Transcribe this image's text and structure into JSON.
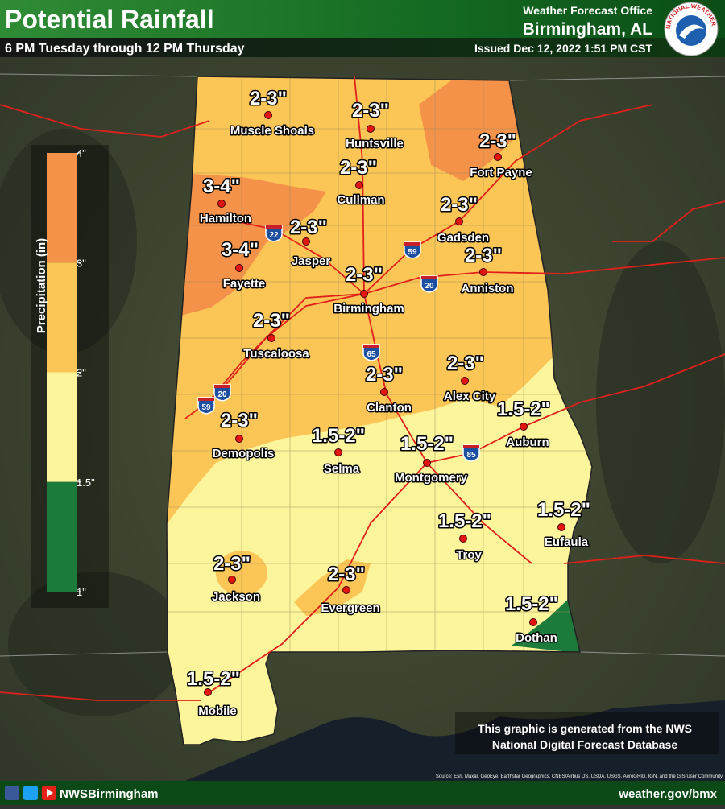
{
  "header": {
    "title": "Potential Rainfall",
    "subtitle": "6 PM Tuesday through 12 PM Thursday",
    "office": "Weather Forecast Office",
    "location": "Birmingham, AL",
    "issued": "Issued Dec 12, 2022 1:51 PM CST"
  },
  "logo_text": "NATIONAL WEATHER SERVICE",
  "legend": {
    "title": "Precipitation (in)",
    "ticks": [
      {
        "value": 4,
        "label": "4\""
      },
      {
        "value": 3,
        "label": "3\""
      },
      {
        "value": 2,
        "label": "2\""
      },
      {
        "value": 1.5,
        "label": "1.5\""
      },
      {
        "value": 1,
        "label": "1\""
      }
    ],
    "colors": [
      "#f4924a",
      "#fcc656",
      "#fdf59c",
      "#1c7a3a"
    ]
  },
  "cities": [
    {
      "name": "Muscle Shoals",
      "amount": "2-3\""
    },
    {
      "name": "Huntsville",
      "amount": "2-3\""
    },
    {
      "name": "Fort Payne",
      "amount": "2-3\""
    },
    {
      "name": "Cullman",
      "amount": "2-3\""
    },
    {
      "name": "Hamilton",
      "amount": "3-4\""
    },
    {
      "name": "Gadsden",
      "amount": "2-3\""
    },
    {
      "name": "Jasper",
      "amount": "2-3\""
    },
    {
      "name": "Fayette",
      "amount": "3-4\""
    },
    {
      "name": "Anniston",
      "amount": "2-3\""
    },
    {
      "name": "Birmingham",
      "amount": "2-3\""
    },
    {
      "name": "Tuscaloosa",
      "amount": "2-3\""
    },
    {
      "name": "Alex City",
      "amount": "2-3\""
    },
    {
      "name": "Clanton",
      "amount": "2-3\""
    },
    {
      "name": "Auburn",
      "amount": "1.5-2\""
    },
    {
      "name": "Demopolis",
      "amount": "2-3\""
    },
    {
      "name": "Selma",
      "amount": "1.5-2\""
    },
    {
      "name": "Montgomery",
      "amount": "1.5-2\""
    },
    {
      "name": "Troy",
      "amount": "1.5-2\""
    },
    {
      "name": "Eufaula",
      "amount": "1.5-2\""
    },
    {
      "name": "Jackson",
      "amount": "2-3\""
    },
    {
      "name": "Evergreen",
      "amount": "2-3\""
    },
    {
      "name": "Dothan",
      "amount": "1.5-2\""
    },
    {
      "name": "Mobile",
      "amount": "1.5-2\""
    }
  ],
  "interstates": [
    "22",
    "59",
    "20",
    "65",
    "20",
    "59",
    "85"
  ],
  "note": [
    "This graphic is generated from the NWS",
    "National Digital Forecast Database"
  ],
  "source": "Source: Esri, Maxar, GeoEye, Earthstar Geographics, CNES/Airbus DS, USDA, USGS, AeroGRID, IGN, and the GIS User Community",
  "footer": {
    "handle": "NWSBirmingham",
    "url": "weather.gov/bmx"
  }
}
